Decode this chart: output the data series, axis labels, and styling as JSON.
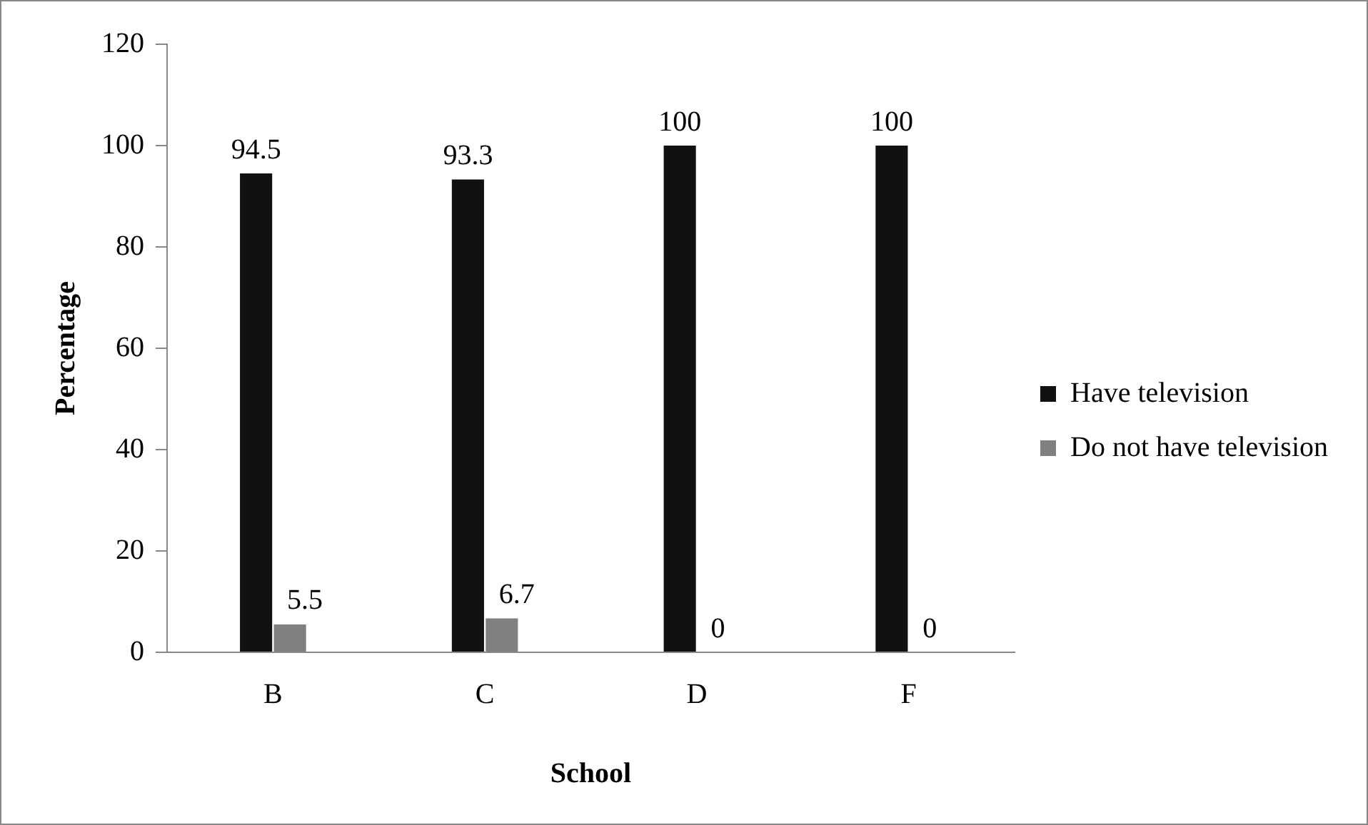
{
  "chart_data": {
    "type": "bar",
    "xlabel": "School",
    "ylabel": "Percentage",
    "categories": [
      "B",
      "C",
      "D",
      "F"
    ],
    "series": [
      {
        "name": "Have television",
        "color": "#111111",
        "values": [
          94.5,
          93.3,
          100,
          100
        ]
      },
      {
        "name": "Do not have television",
        "color": "#808080",
        "values": [
          5.5,
          6.7,
          0,
          0
        ]
      }
    ],
    "ylim": [
      0,
      120
    ],
    "yticks": [
      0,
      20,
      40,
      60,
      80,
      100,
      120
    ],
    "grid": false,
    "legend": "right",
    "data_labels": true
  }
}
